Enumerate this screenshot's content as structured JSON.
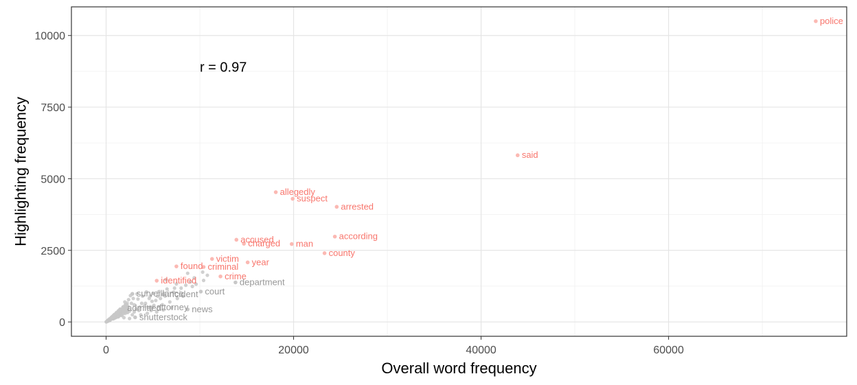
{
  "chart_data": {
    "type": "scatter",
    "title": "",
    "xlabel": "Overall word frequency",
    "ylabel": "Highlighting frequency",
    "xlim": [
      -3700,
      79000
    ],
    "ylim": [
      -500,
      11000
    ],
    "xticks": [
      0,
      20000,
      40000,
      60000
    ],
    "yticks": [
      0,
      2500,
      5000,
      7500,
      10000
    ],
    "xtick_labels": [
      "0",
      "20000",
      "40000",
      "60000"
    ],
    "ytick_labels": [
      "0",
      "2500",
      "5000",
      "7500",
      "10000"
    ],
    "grid": true,
    "annotation": {
      "text": "r = 0.97",
      "x": 12500,
      "y": 8900
    },
    "colors": {
      "highlighted": "#f8766d",
      "highlighted_point": "#fbb9b3",
      "other": "#999999",
      "other_point": "#c8c8c8"
    },
    "labeled_points": [
      {
        "word": "police",
        "x": 75700,
        "y": 10500,
        "group": "highlighted"
      },
      {
        "word": "said",
        "x": 43900,
        "y": 5820,
        "group": "highlighted"
      },
      {
        "word": "allegedly",
        "x": 18100,
        "y": 4530,
        "group": "highlighted"
      },
      {
        "word": "suspect",
        "x": 19900,
        "y": 4300,
        "group": "highlighted"
      },
      {
        "word": "arrested",
        "x": 24600,
        "y": 4020,
        "group": "highlighted"
      },
      {
        "word": "according",
        "x": 24400,
        "y": 2980,
        "group": "highlighted"
      },
      {
        "word": "accused",
        "x": 13900,
        "y": 2870,
        "group": "highlighted"
      },
      {
        "word": "charged",
        "x": 14700,
        "y": 2730,
        "group": "highlighted"
      },
      {
        "word": "man",
        "x": 19800,
        "y": 2720,
        "group": "highlighted"
      },
      {
        "word": "county",
        "x": 23300,
        "y": 2400,
        "group": "highlighted"
      },
      {
        "word": "victim",
        "x": 11300,
        "y": 2200,
        "group": "highlighted"
      },
      {
        "word": "year",
        "x": 15100,
        "y": 2080,
        "group": "highlighted"
      },
      {
        "word": "found",
        "x": 7500,
        "y": 1940,
        "group": "highlighted"
      },
      {
        "word": "criminal",
        "x": 10400,
        "y": 1920,
        "group": "highlighted"
      },
      {
        "word": "crime",
        "x": 12200,
        "y": 1590,
        "group": "highlighted"
      },
      {
        "word": "identified",
        "x": 5400,
        "y": 1440,
        "group": "highlighted"
      },
      {
        "word": "department",
        "x": 13800,
        "y": 1380,
        "group": "other"
      },
      {
        "word": "court",
        "x": 10100,
        "y": 1060,
        "group": "other"
      },
      {
        "word": "incident",
        "x": 6100,
        "y": 960,
        "group": "other"
      },
      {
        "word": "surveillance",
        "x": 2800,
        "y": 980,
        "group": "other"
      },
      {
        "word": "attorney",
        "x": 4900,
        "y": 510,
        "group": "other"
      },
      {
        "word": "admitted",
        "x": 1800,
        "y": 480,
        "group": "other"
      },
      {
        "word": "news",
        "x": 8700,
        "y": 440,
        "group": "other"
      },
      {
        "word": "shutterstock",
        "x": 3100,
        "y": 160,
        "group": "other"
      }
    ],
    "other_points": [
      [
        3000,
        350
      ],
      [
        4500,
        500
      ],
      [
        5400,
        350
      ],
      [
        5300,
        750
      ],
      [
        7200,
        1040
      ],
      [
        8000,
        1180
      ],
      [
        8700,
        1700
      ],
      [
        9400,
        1540
      ],
      [
        10300,
        1740
      ],
      [
        10800,
        1630
      ],
      [
        9200,
        1240
      ],
      [
        6400,
        1470
      ],
      [
        7500,
        1330
      ],
      [
        2500,
        380
      ],
      [
        3400,
        800
      ],
      [
        3900,
        900
      ],
      [
        4100,
        560
      ],
      [
        4700,
        900
      ],
      [
        6000,
        600
      ],
      [
        5600,
        1050
      ],
      [
        6800,
        700
      ],
      [
        5000,
        1000
      ],
      [
        2100,
        600
      ],
      [
        2600,
        920
      ],
      [
        2700,
        650
      ],
      [
        3200,
        450
      ],
      [
        3800,
        650
      ],
      [
        4300,
        1050
      ],
      [
        4900,
        720
      ],
      [
        5800,
        820
      ],
      [
        6300,
        900
      ],
      [
        7000,
        500
      ],
      [
        8200,
        900
      ],
      [
        3700,
        250
      ],
      [
        2300,
        330
      ],
      [
        1500,
        450
      ],
      [
        1200,
        300
      ],
      [
        2800,
        250
      ],
      [
        4400,
        300
      ],
      [
        1900,
        150
      ],
      [
        2500,
        120
      ],
      [
        3500,
        400
      ],
      [
        4800,
        400
      ],
      [
        6500,
        1150
      ],
      [
        7600,
        820
      ],
      [
        9000,
        1400
      ],
      [
        1700,
        220
      ],
      [
        1300,
        180
      ],
      [
        2200,
        450
      ],
      [
        3000,
        600
      ],
      [
        3600,
        520
      ],
      [
        4200,
        650
      ],
      [
        5100,
        580
      ],
      [
        6100,
        420
      ],
      [
        7300,
        1180
      ],
      [
        8500,
        1280
      ],
      [
        9600,
        1320
      ],
      [
        10400,
        1450
      ],
      [
        1000,
        280
      ],
      [
        800,
        200
      ],
      [
        600,
        150
      ],
      [
        1400,
        380
      ],
      [
        1800,
        520
      ],
      [
        2000,
        700
      ],
      [
        2400,
        780
      ],
      [
        2900,
        820
      ],
      [
        3300,
        980
      ],
      [
        4600,
        820
      ],
      [
        5500,
        900
      ],
      [
        6200,
        1000
      ]
    ]
  }
}
